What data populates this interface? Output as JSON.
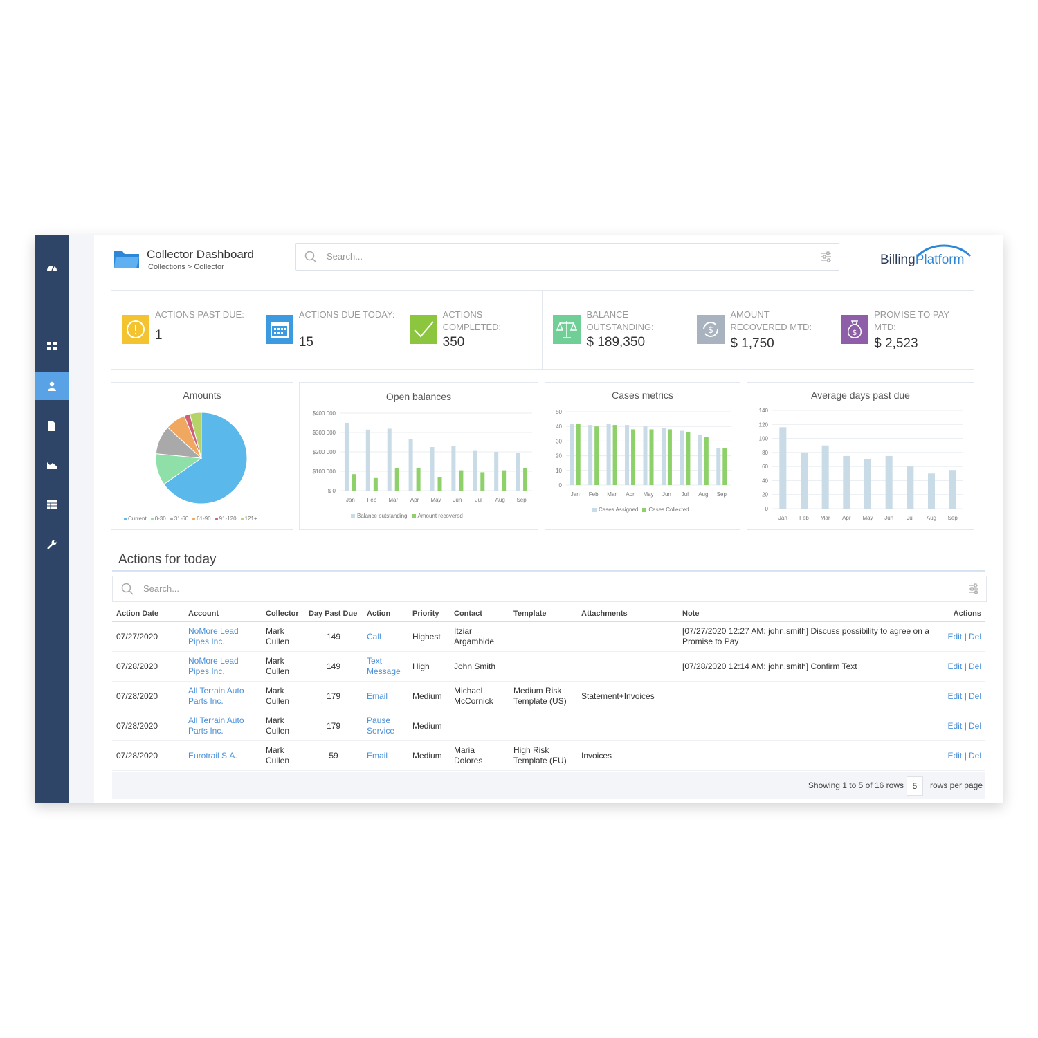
{
  "header": {
    "title": "Collector Dashboard",
    "breadcrumb": "Collections > Collector",
    "search_placeholder": "Search...",
    "logo_part1": "Billing",
    "logo_part2": "Platform"
  },
  "sidebar": {
    "items": [
      {
        "name": "dashboard-icon",
        "active": false
      },
      {
        "name": "grid-icon",
        "active": false
      },
      {
        "name": "user-icon",
        "active": true
      },
      {
        "name": "document-icon",
        "active": false
      },
      {
        "name": "area-chart-icon",
        "active": false
      },
      {
        "name": "table-icon",
        "active": false
      },
      {
        "name": "wrench-icon",
        "active": false
      }
    ]
  },
  "kpis": [
    {
      "label": "Actions past due:",
      "value": "1",
      "icon": "warning-icon",
      "color": "#f4c430"
    },
    {
      "label": "Actions due today:",
      "value": "15",
      "icon": "calendar-icon",
      "color": "#3c9be0"
    },
    {
      "label": "Actions completed:",
      "value": "350",
      "icon": "check-icon",
      "color": "#8cc63f"
    },
    {
      "label": "Balance outstanding:",
      "value": "$ 189,350",
      "icon": "scale-icon",
      "color": "#6fcf97"
    },
    {
      "label": "Amount recovered MTD:",
      "value": "$ 1,750",
      "icon": "refresh-dollar-icon",
      "color": "#a8b3bf"
    },
    {
      "label": "Promise to pay MTD:",
      "value": "$ 2,523",
      "icon": "money-bag-icon",
      "color": "#8e5fa8"
    }
  ],
  "chart_data": [
    {
      "type": "pie",
      "title": "Amounts",
      "categories": [
        "Current",
        "0-30",
        "31-60",
        "61-90",
        "91-120",
        "121+"
      ],
      "values": [
        64,
        11,
        10,
        7,
        2,
        4
      ],
      "colors": [
        "#5bb8ea",
        "#8ee0a8",
        "#a9a9a9",
        "#f0a860",
        "#d0607a",
        "#b6d36a"
      ],
      "legend": "bottom"
    },
    {
      "type": "bar",
      "title": "Open balances",
      "categories": [
        "Jan",
        "Feb",
        "Mar",
        "Apr",
        "May",
        "Jun",
        "Jul",
        "Aug",
        "Sep"
      ],
      "y_ticks": [
        "$400 000",
        "$300 000",
        "$200 000",
        "$100 000",
        "$ 0"
      ],
      "ylim": [
        0,
        400000
      ],
      "series": [
        {
          "name": "Balance outstanding",
          "color": "#c8dbe6",
          "values": [
            350000,
            315000,
            320000,
            265000,
            225000,
            230000,
            205000,
            200000,
            195000
          ]
        },
        {
          "name": "Amount recovered",
          "color": "#8ed16a",
          "values": [
            85000,
            65000,
            115000,
            118000,
            68000,
            105000,
            95000,
            105000,
            115000
          ]
        }
      ],
      "legend": "bottom"
    },
    {
      "type": "bar",
      "title": "Cases metrics",
      "categories": [
        "Jan",
        "Feb",
        "Mar",
        "Apr",
        "May",
        "Jun",
        "Jul",
        "Aug",
        "Sep"
      ],
      "y_ticks": [
        "50",
        "40",
        "30",
        "20",
        "10",
        "0"
      ],
      "ylim": [
        0,
        50
      ],
      "series": [
        {
          "name": "Cases Assigned",
          "color": "#c8dbe6",
          "values": [
            42,
            41,
            42,
            41,
            40,
            39,
            37,
            34,
            25
          ]
        },
        {
          "name": "Cases Collected",
          "color": "#8ed16a",
          "values": [
            42,
            40,
            41,
            38,
            38,
            38,
            36,
            33,
            25
          ]
        }
      ],
      "legend": "bottom"
    },
    {
      "type": "bar",
      "title": "Average days past due",
      "categories": [
        "Jan",
        "Feb",
        "Mar",
        "Apr",
        "May",
        "Jun",
        "Jul",
        "Aug",
        "Sep"
      ],
      "y_ticks": [
        "140",
        "120",
        "100",
        "80",
        "60",
        "40",
        "20",
        "0"
      ],
      "ylim": [
        0,
        140
      ],
      "series": [
        {
          "name": "",
          "color": "#c8dbe6",
          "values": [
            116,
            80,
            90,
            75,
            70,
            75,
            60,
            50,
            55
          ]
        }
      ]
    }
  ],
  "actions": {
    "title": "Actions for today",
    "search_placeholder": "Search...",
    "columns": [
      "Action Date",
      "Account",
      "Collector",
      "Day Past Due",
      "Action",
      "Priority",
      "Contact",
      "Template",
      "Attachments",
      "Note",
      "Actions"
    ],
    "rows": [
      [
        "07/27/2020",
        "NoMore Lead Pipes Inc.",
        "Mark Cullen",
        "149",
        "Call",
        "Highest",
        "Itziar Argambide",
        "",
        "",
        "[07/27/2020 12:27 AM: john.smith] Discuss possibility to agree on a Promise to Pay"
      ],
      [
        "07/28/2020",
        "NoMore Lead Pipes Inc.",
        "Mark Cullen",
        "149",
        "Text Message",
        "High",
        "John Smith",
        "",
        "",
        "[07/28/2020 12:14 AM: john.smith] Confirm Text"
      ],
      [
        "07/28/2020",
        "All Terrain Auto Parts Inc.",
        "Mark Cullen",
        "179",
        "Email",
        "Medium",
        "Michael McCornick",
        "Medium Risk Template (US)",
        "Statement+Invoices",
        ""
      ],
      [
        "07/28/2020",
        "All Terrain Auto Parts Inc.",
        "Mark Cullen",
        "179",
        "Pause Service",
        "Medium",
        "",
        "",
        "",
        ""
      ],
      [
        "07/28/2020",
        "Eurotrail S.A.",
        "Mark Cullen",
        "59",
        "Email",
        "Medium",
        "Maria Dolores",
        "High Risk Template (EU)",
        "Invoices",
        ""
      ]
    ],
    "edit_label": "Edit",
    "del_label": "Del",
    "separator": "|",
    "footer": {
      "showing": "Showing 1 to 5 of 16 rows",
      "per_page": "5",
      "per_page_label": "rows per page"
    }
  }
}
